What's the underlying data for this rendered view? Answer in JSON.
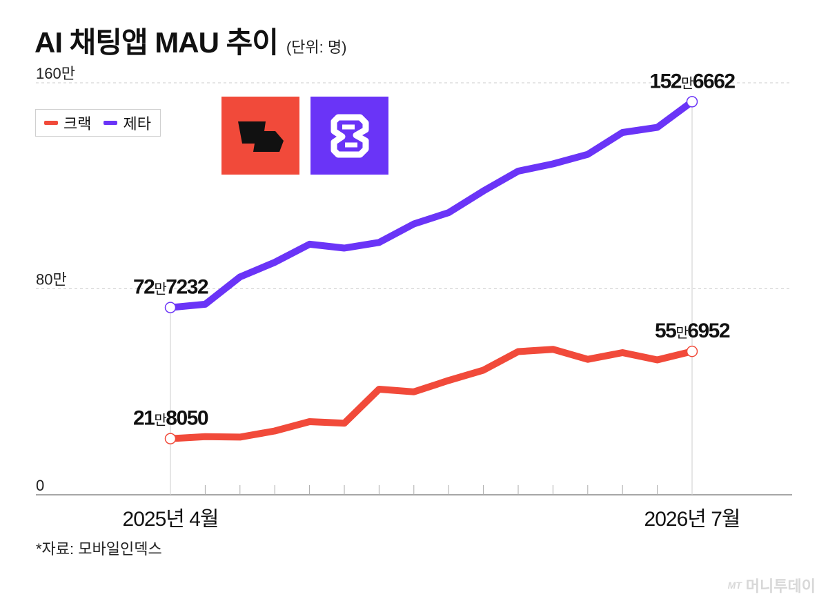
{
  "title": "AI 채팅앱 MAU 추이",
  "unit": "(단위: 명)",
  "source": "*자료: 모바일인덱스",
  "watermark": "머니투데이",
  "watermark_brand": "MT",
  "logos": [
    {
      "name": "crack-logo",
      "bg": "#f14a3a"
    },
    {
      "name": "zeta-logo",
      "bg": "#6a34f7"
    }
  ],
  "chart_data": {
    "type": "line",
    "title": "AI 채팅앱 MAU 추이",
    "ylim": [
      0,
      1600000
    ],
    "yticks": [
      {
        "value": 0,
        "label": "0"
      },
      {
        "value": 800000,
        "label": "80만"
      },
      {
        "value": 1600000,
        "label": "160만"
      }
    ],
    "x_labels": [
      {
        "index": 0,
        "label": "2025년 4월"
      },
      {
        "index": 15,
        "label": "2026년 7월"
      }
    ],
    "categories": [
      "2025-04",
      "2025-05",
      "2025-06",
      "2025-07",
      "2025-08",
      "2025-09",
      "2025-10",
      "2025-11",
      "2025-12",
      "2026-01",
      "2026-02",
      "2026-03",
      "2026-04",
      "2026-05",
      "2026-06",
      "2026-07"
    ],
    "series": [
      {
        "name": "크랙",
        "color": "#f14a3a",
        "values": [
          218050,
          226000,
          224000,
          248000,
          284000,
          278000,
          410000,
          400000,
          444000,
          484000,
          556000,
          565000,
          526000,
          552000,
          524000,
          556952
        ],
        "annotations": [
          {
            "index": 0,
            "big1": "21",
            "small": "만",
            "big2": "8050"
          },
          {
            "index": 15,
            "big1": "55",
            "small": "만",
            "big2": "6952"
          }
        ]
      },
      {
        "name": "제타",
        "color": "#6a34f7",
        "values": [
          727232,
          740000,
          846000,
          903000,
          973000,
          958000,
          980000,
          1052000,
          1096000,
          1180000,
          1257000,
          1285000,
          1322000,
          1407000,
          1427000,
          1526662
        ],
        "annotations": [
          {
            "index": 0,
            "big1": "72",
            "small": "만",
            "big2": "7232"
          },
          {
            "index": 15,
            "big1": "152",
            "small": "만",
            "big2": "6662"
          }
        ]
      }
    ],
    "legend": "top-left",
    "grid": true
  }
}
